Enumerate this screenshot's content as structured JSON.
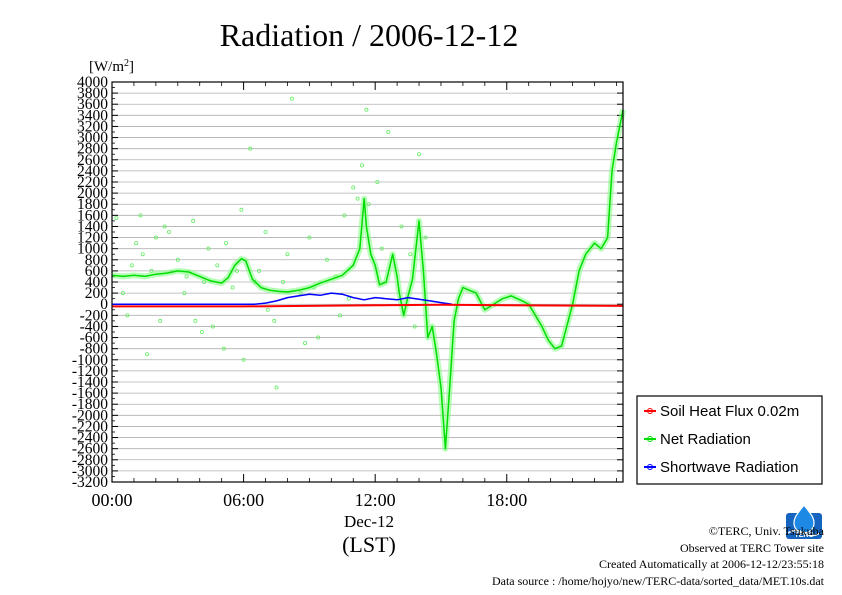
{
  "chart_data": {
    "type": "line",
    "title": "Radiation / 2006-12-12",
    "ylabel_base": "[W/m",
    "ylabel_sup": "2",
    "ylabel_end": "]",
    "xlabel": "(LST)",
    "date_label": "Dec-12",
    "x_unit": "hours",
    "xlim": [
      0,
      23.3
    ],
    "ylim": [
      -3200,
      4000
    ],
    "y_ticks": [
      "4000",
      "3800",
      "3600",
      "3400",
      "3200",
      "3000",
      "2800",
      "2600",
      "2400",
      "2200",
      "2000",
      "1800",
      "1600",
      "1400",
      "1200",
      "1000",
      "800",
      "600",
      "400",
      "200",
      "0",
      "-200",
      "-400",
      "-600",
      "-800",
      "-1000",
      "-1200",
      "-1400",
      "-1600",
      "-1800",
      "-2000",
      "-2200",
      "-2400",
      "-2600",
      "-2800",
      "-3000",
      "-3200"
    ],
    "x_ticks": [
      "00:00",
      "06:00",
      "12:00",
      "18:00"
    ],
    "grid": true,
    "legend_position": "right",
    "series": [
      {
        "name": "Soil Heat Flux 0.02m",
        "color": "#ff0000",
        "x": [
          0,
          6,
          12,
          15,
          18,
          23.3
        ],
        "y": [
          -40,
          -40,
          -20,
          -10,
          -20,
          -30
        ]
      },
      {
        "name": "Net Radiation",
        "color": "#00dd00",
        "x": [
          0,
          0.5,
          1.0,
          1.5,
          2.0,
          2.5,
          3.0,
          3.5,
          4.0,
          4.5,
          5.0,
          5.3,
          5.6,
          5.9,
          6.1,
          6.4,
          6.8,
          7.2,
          7.6,
          8.0,
          8.5,
          9.0,
          9.5,
          10.0,
          10.5,
          11.0,
          11.3,
          11.5,
          11.6,
          11.8,
          12.0,
          12.2,
          12.5,
          12.8,
          13.0,
          13.1,
          13.3,
          13.5,
          13.7,
          14.0,
          14.2,
          14.4,
          14.6,
          14.8,
          15.0,
          15.2,
          15.4,
          15.6,
          15.8,
          16.0,
          16.3,
          16.6,
          17.0,
          17.4,
          17.8,
          18.2,
          18.6,
          19.0,
          19.3,
          19.6,
          19.9,
          20.2,
          20.5,
          20.8,
          21.0,
          21.3,
          21.6,
          22.0,
          22.3,
          22.6,
          22.8,
          23.0,
          23.3
        ],
        "y": [
          520,
          500,
          520,
          500,
          540,
          560,
          600,
          580,
          500,
          420,
          380,
          480,
          700,
          820,
          780,
          450,
          300,
          250,
          230,
          220,
          250,
          300,
          380,
          450,
          520,
          700,
          1000,
          1900,
          1400,
          900,
          700,
          350,
          400,
          900,
          500,
          200,
          -200,
          150,
          450,
          1500,
          600,
          -600,
          -400,
          -900,
          -1500,
          -2600,
          -1500,
          -300,
          100,
          300,
          250,
          200,
          -100,
          0,
          100,
          150,
          80,
          0,
          -200,
          -400,
          -650,
          -800,
          -750,
          -300,
          0,
          600,
          900,
          1100,
          1000,
          1200,
          2400,
          2900,
          3500
        ],
        "scatter_x": [
          0.2,
          0.7,
          1.1,
          1.4,
          1.8,
          2.2,
          2.6,
          3.0,
          3.3,
          3.7,
          4.1,
          4.4,
          4.8,
          5.1,
          5.5,
          5.9,
          6.3,
          6.7,
          7.1,
          7.5,
          7.8,
          8.2,
          8.6,
          9.0,
          9.4,
          9.8,
          10.2,
          10.6,
          11.0,
          11.4,
          11.6,
          11.7,
          12.1,
          12.6,
          13.2,
          13.6,
          14.0,
          14.3,
          0.5,
          1.6,
          2.4,
          3.4,
          4.6,
          5.2,
          6.0,
          7.0,
          8.0,
          9.2,
          10.4,
          11.2,
          0.9,
          2.0,
          3.8,
          5.7,
          6.5,
          8.8,
          10.8,
          12.3,
          13.8,
          1.3,
          4.2,
          7.4
        ],
        "scatter_y": [
          1550,
          -200,
          1100,
          900,
          600,
          -300,
          1300,
          800,
          200,
          1500,
          -500,
          1000,
          700,
          -800,
          300,
          1700,
          2800,
          600,
          -100,
          -1500,
          400,
          3700,
          200,
          1200,
          -600,
          800,
          500,
          1600,
          2100,
          2500,
          3500,
          1800,
          2200,
          3100,
          1400,
          900,
          2700,
          1200,
          200,
          -900,
          1400,
          500,
          -400,
          1100,
          -1000,
          1300,
          900,
          300,
          -200,
          1900,
          700,
          1200,
          -300,
          600,
          400,
          -700,
          100,
          1000,
          -400,
          1600,
          400,
          -300
        ]
      },
      {
        "name": "Shortwave Radiation",
        "color": "#0000ff",
        "x": [
          0,
          5.5,
          6.5,
          7.0,
          7.5,
          8.0,
          8.5,
          9.0,
          9.5,
          10.0,
          10.5,
          11.0,
          11.5,
          12.0,
          12.5,
          13.0,
          13.5,
          14.0,
          14.5,
          15.0,
          15.5
        ],
        "y": [
          0,
          0,
          0,
          20,
          60,
          120,
          150,
          180,
          160,
          200,
          180,
          120,
          80,
          120,
          100,
          80,
          120,
          90,
          60,
          30,
          0
        ]
      }
    ]
  },
  "credits": {
    "copyright": "©TERC, Univ. Tsukuba",
    "observed": "Observed at TERC Tower site",
    "created": "Created Automatically at 2006-12-12/23:55:18",
    "source": "Data source : /home/hojyo/new/TERC-data/sorted_data/MET.10s.dat",
    "logo_text": "TERC"
  }
}
